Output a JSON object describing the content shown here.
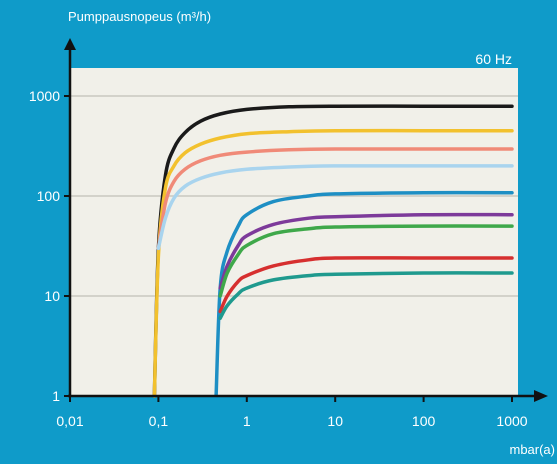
{
  "chart_data": {
    "type": "line",
    "title": "",
    "ylabel": "Pumppausnopeus (m³/h)",
    "xlabel": "mbar(a)",
    "annotation": "60 Hz",
    "x_scale": "log",
    "y_scale": "log",
    "xlim": [
      0.01,
      1000
    ],
    "ylim": [
      1,
      1000
    ],
    "x_ticks": [
      "0,01",
      "0,1",
      "1",
      "10",
      "100",
      "1000"
    ],
    "x_tick_values": [
      0.01,
      0.1,
      1,
      10,
      100,
      1000
    ],
    "y_ticks": [
      "1",
      "10",
      "100",
      "1000"
    ],
    "y_tick_values": [
      1,
      10,
      100,
      1000
    ],
    "grid": "horizontal",
    "colors": {
      "background": "#0f9bc9",
      "plot_area": "#f1f0e9",
      "axis": "#111111",
      "grid": "#c9c8c0"
    },
    "series": [
      {
        "color": "#1a1a1a",
        "x": [
          0.09,
          0.1,
          0.12,
          0.15,
          0.2,
          0.3,
          0.5,
          1,
          3,
          10,
          100,
          1000
        ],
        "y": [
          1,
          30,
          160,
          300,
          430,
          560,
          660,
          735,
          780,
          790,
          790,
          790
        ]
      },
      {
        "color": "#f2c12e",
        "x": [
          0.09,
          0.1,
          0.12,
          0.15,
          0.2,
          0.3,
          0.5,
          1,
          3,
          10,
          100,
          1000
        ],
        "y": [
          1,
          25,
          120,
          200,
          270,
          330,
          380,
          420,
          440,
          450,
          450,
          450
        ]
      },
      {
        "color": "#f08a78",
        "x": [
          0.1,
          0.12,
          0.15,
          0.2,
          0.3,
          0.5,
          1,
          3,
          10,
          100,
          1000
        ],
        "y": [
          30,
          85,
          140,
          185,
          225,
          255,
          275,
          290,
          295,
          295,
          295
        ]
      },
      {
        "color": "#a9d4ee",
        "x": [
          0.1,
          0.12,
          0.15,
          0.2,
          0.3,
          0.5,
          1,
          3,
          10,
          100,
          1000
        ],
        "y": [
          30,
          60,
          95,
          125,
          150,
          170,
          185,
          195,
          200,
          200,
          200
        ]
      },
      {
        "color": "#1e8fc4",
        "x": [
          0.45,
          0.5,
          0.6,
          0.8,
          1,
          2,
          5,
          10,
          100,
          1000
        ],
        "y": [
          1,
          12,
          28,
          50,
          65,
          88,
          100,
          105,
          108,
          108
        ]
      },
      {
        "color": "#7d3a9a",
        "x": [
          0.5,
          0.6,
          0.8,
          1,
          2,
          5,
          10,
          100,
          1000
        ],
        "y": [
          12,
          20,
          32,
          40,
          52,
          60,
          62,
          65,
          65
        ]
      },
      {
        "color": "#3fa84a",
        "x": [
          0.5,
          0.6,
          0.8,
          1,
          2,
          5,
          10,
          100,
          1000
        ],
        "y": [
          10,
          17,
          26,
          32,
          42,
          47,
          49,
          50,
          50
        ]
      },
      {
        "color": "#d62f2f",
        "x": [
          0.5,
          0.6,
          0.8,
          1,
          2,
          5,
          10,
          100,
          1000
        ],
        "y": [
          7,
          10,
          14,
          16,
          20,
          23,
          24,
          24,
          24
        ]
      },
      {
        "color": "#1f9a8e",
        "x": [
          0.5,
          0.6,
          0.8,
          1,
          2,
          5,
          10,
          100,
          1000
        ],
        "y": [
          6,
          8,
          10.5,
          12,
          14.5,
          16,
          16.5,
          17,
          17
        ]
      }
    ]
  }
}
